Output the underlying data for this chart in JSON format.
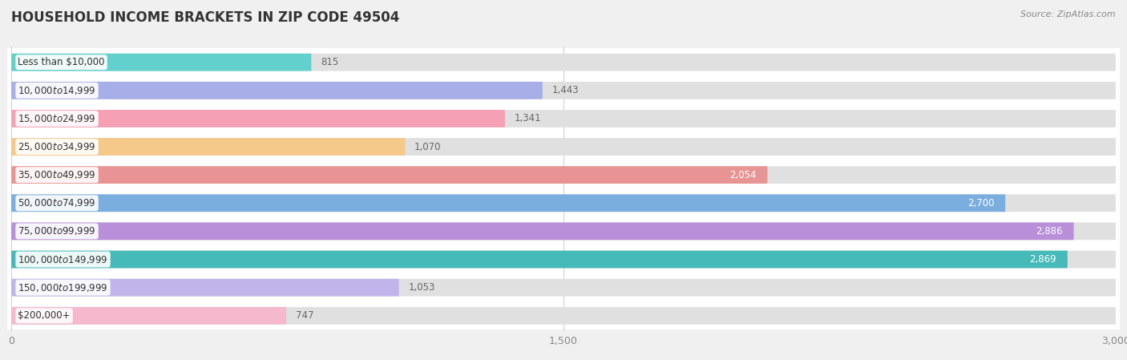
{
  "title": "HOUSEHOLD INCOME BRACKETS IN ZIP CODE 49504",
  "source": "Source: ZipAtlas.com",
  "categories": [
    "Less than $10,000",
    "$10,000 to $14,999",
    "$15,000 to $24,999",
    "$25,000 to $34,999",
    "$35,000 to $49,999",
    "$50,000 to $74,999",
    "$75,000 to $99,999",
    "$100,000 to $149,999",
    "$150,000 to $199,999",
    "$200,000+"
  ],
  "values": [
    815,
    1443,
    1341,
    1070,
    2054,
    2700,
    2886,
    2869,
    1053,
    747
  ],
  "bar_colors": [
    "#62d0cc",
    "#a8aee8",
    "#f5a0b5",
    "#f5c98a",
    "#e89494",
    "#7aaede",
    "#b88fd8",
    "#45bab8",
    "#c0b4ea",
    "#f5b8cc"
  ],
  "background_color": "#f0f0f0",
  "bar_bg_color": "#e0e0e0",
  "row_bg_color": "#ffffff",
  "xlim": [
    0,
    3000
  ],
  "xticks": [
    0,
    1500,
    3000
  ],
  "title_fontsize": 12,
  "label_fontsize": 8.5,
  "value_fontsize": 8.5,
  "value_threshold": 2000,
  "value_inside_color": "#ffffff",
  "value_outside_color": "#666666"
}
